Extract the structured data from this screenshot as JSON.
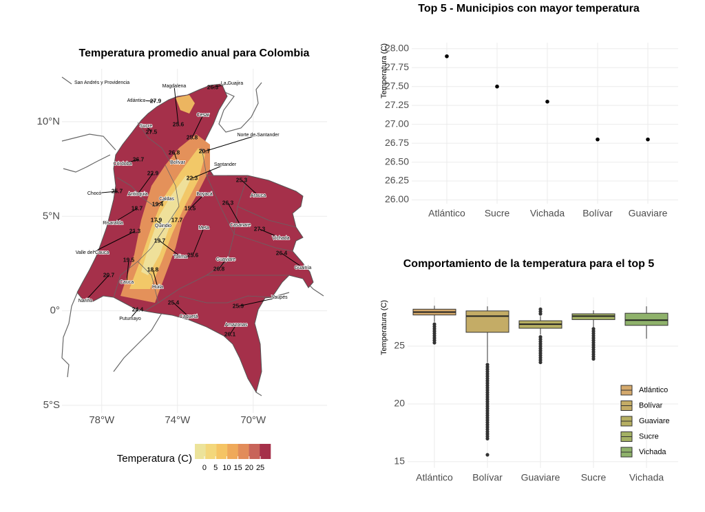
{
  "chart_data": [
    {
      "type": "map",
      "title": "Temperatura promedio anual para Colombia",
      "xlim": [
        -80.1,
        -66.1
      ],
      "ylim": [
        -5.4,
        12.8
      ],
      "xticks": [
        {
          "value": -78,
          "label": "78°W"
        },
        {
          "value": -74,
          "label": "74°W"
        },
        {
          "value": -70,
          "label": "70°W"
        }
      ],
      "yticks": [
        {
          "value": 10,
          "label": "10°N"
        },
        {
          "value": 5,
          "label": "5°N"
        },
        {
          "value": 0,
          "label": "0°"
        },
        {
          "value": -5,
          "label": "5°S"
        }
      ],
      "grid": true,
      "regions": [
        {
          "name": "San Andrés y Providencia"
        },
        {
          "name": "Atlántico",
          "value": 27.9
        },
        {
          "name": "Magdalena",
          "value": 25.6
        },
        {
          "name": "La Guajira",
          "value": 26.3
        },
        {
          "name": "Cesar",
          "value": 25.8
        },
        {
          "name": "Sucre",
          "value": 27.5
        },
        {
          "name": "Córdoba",
          "value": 26.7
        },
        {
          "name": "Bolívar",
          "value": 26.8
        },
        {
          "name": "Norte de Santander",
          "value": 20.7
        },
        {
          "name": "Santander",
          "value": 22.3
        },
        {
          "name": "Antioquia",
          "value": 22.9
        },
        {
          "name": "Chocó",
          "value": 25.7
        },
        {
          "name": "Caldas",
          "value": 19.4
        },
        {
          "name": "Risaralda",
          "value": 18.7
        },
        {
          "name": "Quindio",
          "value": 17.9
        },
        {
          "name": "Boyacá",
          "value": 15.5
        },
        {
          "value": 17.7
        },
        {
          "name": "Arauca",
          "value": 25.3
        },
        {
          "name": "Casanare",
          "value": 26.3
        },
        {
          "name": "Vichada",
          "value": 27.3
        },
        {
          "name": "Meta",
          "value": 25.6
        },
        {
          "name": "Tolima",
          "value": 19.7
        },
        {
          "name": "Valle del Cauca",
          "value": 21.3
        },
        {
          "name": "Cauca",
          "value": 19.5
        },
        {
          "name": "Huila",
          "value": 18.8
        },
        {
          "name": "Nariño",
          "value": 20.7
        },
        {
          "name": "Putumayo",
          "value": 24.4
        },
        {
          "name": "Caquetá",
          "value": 25.4
        },
        {
          "name": "Guaviare",
          "value": 26.8
        },
        {
          "name": "Guainía",
          "value": 26.4
        },
        {
          "name": "Vaupés",
          "value": 25.9
        },
        {
          "name": "Amazonas",
          "value": 26.1
        }
      ],
      "legend": {
        "title": "Temperatura (C)",
        "range": [
          -4.3,
          29.6
        ],
        "ticks": [
          0,
          5,
          10,
          15,
          20,
          25
        ],
        "colors": [
          "#ece39a",
          "#f3d77b",
          "#f5c464",
          "#efa95a",
          "#e28c5a",
          "#c8645a",
          "#a5304a"
        ]
      }
    },
    {
      "type": "scatter",
      "title": "Top 5 - Municipios con mayor temperatura",
      "y_label": "Temperatura (C)",
      "categories": [
        "Atlántico",
        "Sucre",
        "Vichada",
        "Bolívar",
        "Guaviare"
      ],
      "values": [
        27.9,
        27.5,
        27.3,
        26.8,
        26.8
      ],
      "color": "#000000",
      "ylim": [
        25.95,
        28.08
      ],
      "yticks": [
        {
          "value": 26,
          "label": "26.00"
        },
        {
          "value": 26.25,
          "label": "26.25"
        },
        {
          "value": 26.5,
          "label": "26.50"
        },
        {
          "value": 26.75,
          "label": "26.75"
        },
        {
          "value": 27,
          "label": "27.00"
        },
        {
          "value": 27.25,
          "label": "27.25"
        },
        {
          "value": 27.5,
          "label": "27.50"
        },
        {
          "value": 27.75,
          "label": "27.75"
        },
        {
          "value": 28,
          "label": "28.00"
        }
      ],
      "grid": true
    },
    {
      "type": "box",
      "title": "Comportamiento de la temperatura para el top 5",
      "y_label": "Temperatura (C)",
      "categories": [
        "Atlántico",
        "Bolívar",
        "Guaviare",
        "Sucre",
        "Vichada"
      ],
      "ylim": [
        14.46,
        29.23
      ],
      "yticks": [
        15,
        20,
        25
      ],
      "grid": true,
      "legend_position": "right",
      "series": [
        {
          "name": "Atlántico",
          "color": "#d4a96c",
          "whislo": 27.1,
          "q1": 27.7,
          "median": 27.95,
          "q3": 28.2,
          "whishi": 28.5,
          "outliers": [
            25.3,
            25.5,
            25.7,
            25.9,
            26.1,
            26.3,
            26.5,
            26.7,
            26.9
          ]
        },
        {
          "name": "Bolívar",
          "color": "#c4ac66",
          "whislo": 23.6,
          "q1": 26.2,
          "median": 27.6,
          "q3": 28.05,
          "whishi": 28.45,
          "outliers": [
            15.6,
            17.0,
            17.2,
            17.4,
            17.6,
            17.8,
            18.0,
            18.2,
            18.4,
            18.6,
            18.8,
            19.0,
            19.2,
            19.4,
            19.6,
            19.8,
            20.0,
            20.2,
            20.4,
            20.6,
            20.8,
            21.0,
            21.2,
            21.4,
            21.6,
            21.8,
            22.0,
            22.2,
            22.4,
            22.6,
            22.8,
            23.0,
            23.2,
            23.4
          ]
        },
        {
          "name": "Guaviare",
          "color": "#b6af62",
          "whislo": 26.0,
          "q1": 26.55,
          "median": 26.9,
          "q3": 27.2,
          "whishi": 27.6,
          "outliers": [
            23.6,
            23.8,
            24.0,
            24.2,
            24.4,
            24.6,
            24.8,
            25.0,
            25.2,
            25.4,
            25.6,
            25.8,
            27.8,
            28.0,
            28.2
          ]
        },
        {
          "name": "Sucre",
          "color": "#a4b164",
          "whislo": 26.6,
          "q1": 27.3,
          "median": 27.6,
          "q3": 27.8,
          "whishi": 28.1,
          "outliers": [
            23.9,
            24.1,
            24.3,
            24.5,
            24.7,
            24.9,
            25.1,
            25.3,
            25.5,
            25.7,
            25.9,
            26.1,
            26.3,
            26.5
          ]
        },
        {
          "name": "Vichada",
          "color": "#8fb26b",
          "whislo": 25.65,
          "q1": 26.8,
          "median": 27.25,
          "q3": 27.85,
          "whishi": 28.45,
          "outliers": []
        }
      ]
    }
  ]
}
